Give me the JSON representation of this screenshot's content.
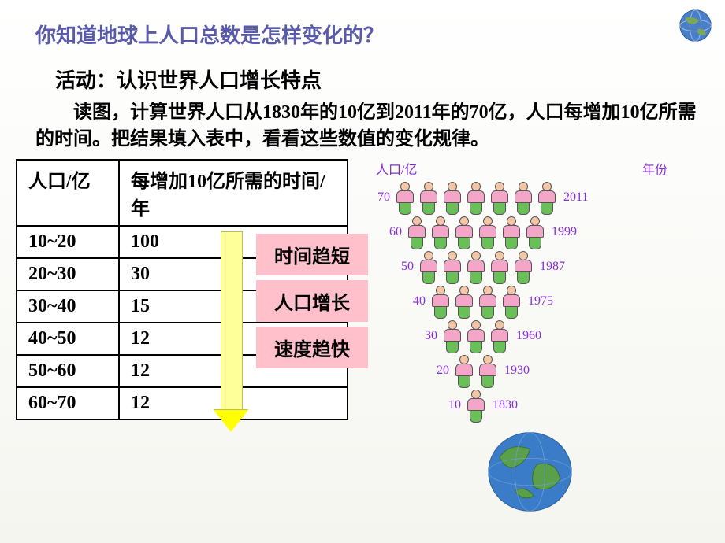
{
  "page_title": "你知道地球上人口总数是怎样变化的？",
  "activity_title": "活动：认识世界人口增长特点",
  "body_text": "读图，计算世界人口从1830年的10亿到2011年的70亿，人口每增加10亿所需的时间。把结果填入表中，看看这些数值的变化规律。",
  "table": {
    "header_col1": "人口/亿",
    "header_col2": "每增加10亿所需的时间/年",
    "rows": [
      {
        "range": "10~20",
        "years": "100"
      },
      {
        "range": "20~30",
        "years": "30"
      },
      {
        "range": "30~40",
        "years": "15"
      },
      {
        "range": "40~50",
        "years": "12"
      },
      {
        "range": "50~60",
        "years": "12"
      },
      {
        "range": "60~70",
        "years": "12"
      }
    ]
  },
  "conclusions": [
    "时间趋短",
    "人口增长",
    "速度趋快"
  ],
  "pyramid": {
    "axis_left": "人口/亿",
    "axis_right": "年份",
    "rows": [
      {
        "pop": 70,
        "count": 7,
        "year": 2011
      },
      {
        "pop": 60,
        "count": 6,
        "year": 1999
      },
      {
        "pop": 50,
        "count": 5,
        "year": 1987
      },
      {
        "pop": 40,
        "count": 4,
        "year": 1975
      },
      {
        "pop": 30,
        "count": 3,
        "year": 1960
      },
      {
        "pop": 20,
        "count": 2,
        "year": 1930
      },
      {
        "pop": 10,
        "count": 1,
        "year": 1830
      }
    ],
    "person_colors": {
      "head": "#f5c6a5",
      "torso": "#f4a6c8",
      "legs": "#6bbf59"
    },
    "label_color": "#8a2be2"
  },
  "colors": {
    "title": "#5a5aaa",
    "pink_box_bg": "#ffc0cb",
    "arrow_fill": "#ffff99",
    "arrow_head": "#ffff00"
  }
}
